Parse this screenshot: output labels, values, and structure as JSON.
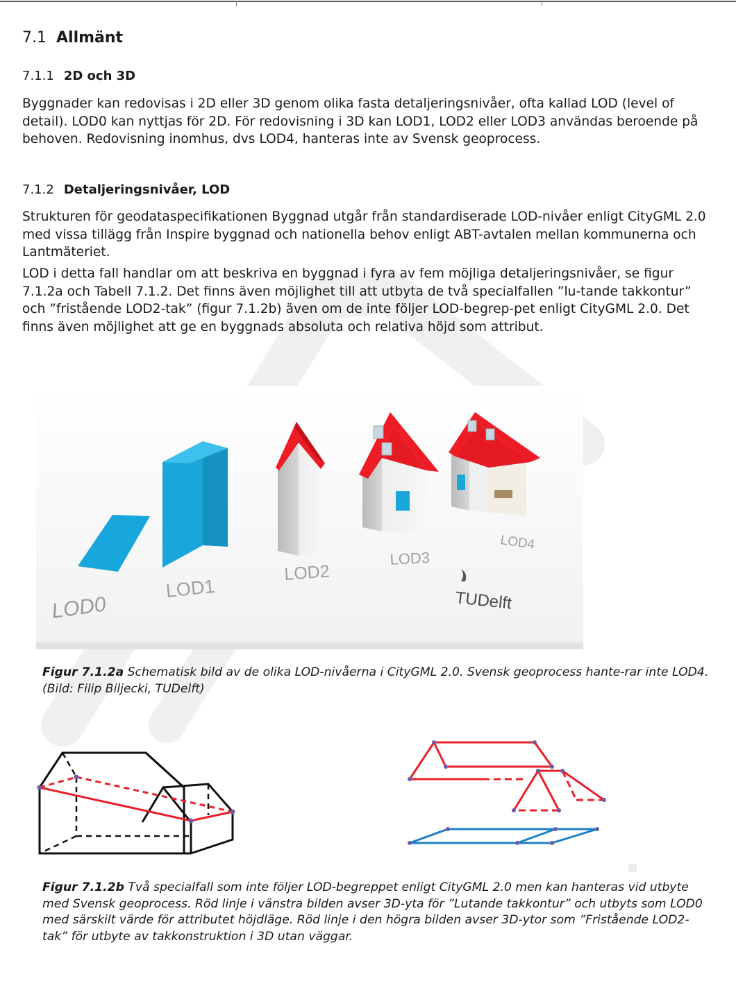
{
  "section": {
    "number": "7.1",
    "title": "Allmänt"
  },
  "subsections": [
    {
      "number": "7.1.1",
      "title": "2D och 3D",
      "paragraphs": [
        "Byggnader kan redovisas i 2D eller 3D genom olika fasta detaljeringsnivåer, ofta kallad LOD (level of detail). LOD0 kan nyttjas för 2D. För redovisning i 3D kan LOD1, LOD2 eller LOD3 användas beroende på behoven. Redovisning inomhus, dvs LOD4, hanteras inte av Svensk geoprocess."
      ]
    },
    {
      "number": "7.1.2",
      "title": "Detaljeringsnivåer, LOD",
      "paragraphs": [
        "Strukturen för geodataspecifikationen Byggnad utgår från standardiserade LOD-nivåer enligt CityGML 2.0 med vissa tillägg från Inspire byggnad och nationella behov enligt ABT-avtalen mellan kommunerna och Lantmäteriet.",
        "LOD i detta fall handlar om att beskriva en byggnad i fyra av fem möjliga detaljeringsnivåer, se figur 7.1.2a och Tabell 7.1.2. Det finns även möjlighet till att utbyta de två specialfallen ”lu-tande takkontur” och ”fristående LOD2-tak” (figur 7.1.2b) även om de inte följer LOD-begrep-pet enligt CityGML 2.0. Det finns även möjlighet att ge en byggnads absoluta och relativa höjd som attribut."
      ]
    }
  ],
  "figure_a": {
    "labels": [
      "LOD0",
      "LOD1",
      "LOD2",
      "LOD3",
      "LOD4"
    ],
    "logo_text": "TUDelft",
    "caption_label": "Figur 7.1.2a",
    "caption_text": " Schematisk bild av de olika LOD-nivåerna i CityGML 2.0. Svensk geoprocess hante-rar inte LOD4. (Bild: Filip Biljecki, TUDelft)"
  },
  "figure_b": {
    "caption_label": "Figur 7.1.2b",
    "caption_text": " Två specialfall som inte följer LOD-begreppet enligt CityGML 2.0 men kan hanteras vid utbyte med Svensk geoprocess. Röd linje i vänstra bilden avser 3D-yta för ”Lutande takkontur” och utbyts som LOD0 med särskilt värde för attributet höjdläge. Röd linje i den högra bilden avser 3D-ytor som ”Fristående LOD2-tak” för utbyte av takkonstruktion i 3D utan väggar."
  },
  "colors": {
    "lod_blue": "#1aa6d8",
    "roof_red": "#ee1c25",
    "wall_grey": "#d9d9d9",
    "line_red": "#e8202a",
    "line_blue": "#1e7fc4"
  }
}
